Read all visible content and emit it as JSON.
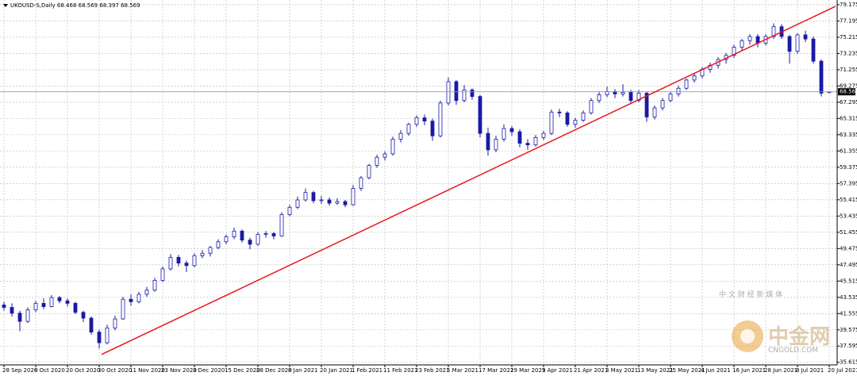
{
  "chart_data": {
    "type": "candlestick",
    "title": "UKOUSD-S,Daily  68.468 68.569 68.397 68.569",
    "up_color": "#ffffff",
    "down_color": "#1a1aa6",
    "outline_color": "#1a1aa6",
    "grid": true,
    "xlim": [
      -1,
      210
    ],
    "ylim": [
      35.3,
      79.75
    ],
    "yticks": [
      79.175,
      77.195,
      75.215,
      73.235,
      71.255,
      69.275,
      67.295,
      65.315,
      63.335,
      61.355,
      59.375,
      57.395,
      55.415,
      53.435,
      51.455,
      49.475,
      47.495,
      45.515,
      43.535,
      41.555,
      39.575,
      37.595,
      35.615
    ],
    "xticks": [
      {
        "value": 0,
        "label": "28 Sep 2020"
      },
      {
        "value": 8,
        "label": "8 Oct 2020"
      },
      {
        "value": 16,
        "label": "20 Oct 2020"
      },
      {
        "value": 24,
        "label": "30 Oct 2020"
      },
      {
        "value": 32,
        "label": "11 Nov 2020"
      },
      {
        "value": 40,
        "label": "23 Nov 2020"
      },
      {
        "value": 48,
        "label": "3 Dec 2020"
      },
      {
        "value": 56,
        "label": "15 Dec 2020"
      },
      {
        "value": 64,
        "label": "28 Dec 2020"
      },
      {
        "value": 72,
        "label": "8 Jan 2021"
      },
      {
        "value": 80,
        "label": "20 Jan 2021"
      },
      {
        "value": 88,
        "label": "1 Feb 2021"
      },
      {
        "value": 96,
        "label": "11 Feb 2021"
      },
      {
        "value": 104,
        "label": "23 Feb 2021"
      },
      {
        "value": 112,
        "label": "5 Mar 2021"
      },
      {
        "value": 120,
        "label": "17 Mar 2021"
      },
      {
        "value": 128,
        "label": "29 Mar 2021"
      },
      {
        "value": 136,
        "label": "9 Apr 2021"
      },
      {
        "value": 144,
        "label": "21 Apr 2021"
      },
      {
        "value": 152,
        "label": "3 May 2021"
      },
      {
        "value": 160,
        "label": "13 May 2021"
      },
      {
        "value": 168,
        "label": "25 May 2021"
      },
      {
        "value": 176,
        "label": "4 Jun 2021"
      },
      {
        "value": 184,
        "label": "16 Jun 2021"
      },
      {
        "value": 192,
        "label": "28 Jun 2021"
      },
      {
        "value": 200,
        "label": "8 Jul 2021"
      },
      {
        "value": 208,
        "label": "20 Jul 2021"
      }
    ],
    "x": [
      0,
      2,
      4,
      6,
      8,
      10,
      12,
      14,
      16,
      18,
      20,
      22,
      24,
      26,
      28,
      30,
      32,
      34,
      36,
      38,
      40,
      42,
      44,
      46,
      48,
      50,
      52,
      54,
      56,
      58,
      60,
      62,
      64,
      66,
      68,
      70,
      72,
      74,
      76,
      78,
      80,
      82,
      84,
      86,
      88,
      90,
      92,
      94,
      96,
      98,
      100,
      102,
      104,
      106,
      108,
      110,
      112,
      114,
      116,
      118,
      120,
      122,
      124,
      126,
      128,
      130,
      132,
      134,
      136,
      138,
      140,
      142,
      144,
      146,
      148,
      150,
      152,
      154,
      156,
      158,
      160,
      162,
      164,
      166,
      168,
      170,
      172,
      174,
      176,
      178,
      180,
      182,
      184,
      186,
      188,
      190,
      192,
      194,
      196,
      198,
      200,
      202,
      204,
      206,
      208
    ],
    "values": [
      [
        42.6,
        43.0,
        41.9,
        42.3
      ],
      [
        42.3,
        42.8,
        41.2,
        41.6
      ],
      [
        41.6,
        41.9,
        39.4,
        40.6
      ],
      [
        40.6,
        42.3,
        40.4,
        42.0
      ],
      [
        42.0,
        43.1,
        41.7,
        42.8
      ],
      [
        42.8,
        43.4,
        42.1,
        42.4
      ],
      [
        42.4,
        43.8,
        42.3,
        43.5
      ],
      [
        43.5,
        43.7,
        42.8,
        43.1
      ],
      [
        43.1,
        43.4,
        42.4,
        42.8
      ],
      [
        42.8,
        43.0,
        41.5,
        41.7
      ],
      [
        41.7,
        41.9,
        40.5,
        41.0
      ],
      [
        41.0,
        41.2,
        39.0,
        39.3
      ],
      [
        39.3,
        39.6,
        37.3,
        38.0
      ],
      [
        38.0,
        40.2,
        37.8,
        39.8
      ],
      [
        39.8,
        41.3,
        39.5,
        40.9
      ],
      [
        40.9,
        43.6,
        40.8,
        43.3
      ],
      [
        43.3,
        43.9,
        42.5,
        43.0
      ],
      [
        43.0,
        44.2,
        42.8,
        43.9
      ],
      [
        43.9,
        44.8,
        43.6,
        44.4
      ],
      [
        44.4,
        45.9,
        44.2,
        45.6
      ],
      [
        45.6,
        47.3,
        45.4,
        47.0
      ],
      [
        47.0,
        48.8,
        46.8,
        48.4
      ],
      [
        48.4,
        48.7,
        47.3,
        47.7
      ],
      [
        47.7,
        48.0,
        46.6,
        47.4
      ],
      [
        47.4,
        48.9,
        47.2,
        48.6
      ],
      [
        48.6,
        49.3,
        48.3,
        48.9
      ],
      [
        48.9,
        49.8,
        48.5,
        49.6
      ],
      [
        49.6,
        50.6,
        49.4,
        50.3
      ],
      [
        50.3,
        51.2,
        50.0,
        50.9
      ],
      [
        50.9,
        52.0,
        50.6,
        51.6
      ],
      [
        51.6,
        51.8,
        50.2,
        50.5
      ],
      [
        50.5,
        50.8,
        49.4,
        50.0
      ],
      [
        50.0,
        51.5,
        49.8,
        51.2
      ],
      [
        51.2,
        51.6,
        50.8,
        51.3
      ],
      [
        51.3,
        51.5,
        50.6,
        51.0
      ],
      [
        51.0,
        53.9,
        50.9,
        53.6
      ],
      [
        53.6,
        54.8,
        53.4,
        54.5
      ],
      [
        54.5,
        55.8,
        54.3,
        55.4
      ],
      [
        55.4,
        56.8,
        55.2,
        56.3
      ],
      [
        56.3,
        56.5,
        55.0,
        55.3
      ],
      [
        55.3,
        55.9,
        54.9,
        55.4
      ],
      [
        55.4,
        55.7,
        54.7,
        55.0
      ],
      [
        55.0,
        55.6,
        54.8,
        55.2
      ],
      [
        55.2,
        55.4,
        54.5,
        54.8
      ],
      [
        54.8,
        57.2,
        54.7,
        56.8
      ],
      [
        56.8,
        58.3,
        56.5,
        58.1
      ],
      [
        58.1,
        59.8,
        57.9,
        59.6
      ],
      [
        59.6,
        60.9,
        59.3,
        60.6
      ],
      [
        60.6,
        61.3,
        60.2,
        61.0
      ],
      [
        61.0,
        63.1,
        60.8,
        62.8
      ],
      [
        62.8,
        63.9,
        62.4,
        63.5
      ],
      [
        63.5,
        64.8,
        63.2,
        64.6
      ],
      [
        64.6,
        65.7,
        64.3,
        65.4
      ],
      [
        65.4,
        65.8,
        64.5,
        65.0
      ],
      [
        65.0,
        65.3,
        62.6,
        63.2
      ],
      [
        63.2,
        67.5,
        63.0,
        67.2
      ],
      [
        67.2,
        70.3,
        66.9,
        69.8
      ],
      [
        69.8,
        70.0,
        67.0,
        67.5
      ],
      [
        67.5,
        69.4,
        67.3,
        68.8
      ],
      [
        68.8,
        69.0,
        67.6,
        68.0
      ],
      [
        68.0,
        68.2,
        63.0,
        63.5
      ],
      [
        63.5,
        64.2,
        60.8,
        61.5
      ],
      [
        61.5,
        63.2,
        61.2,
        62.8
      ],
      [
        62.8,
        64.6,
        62.5,
        64.1
      ],
      [
        64.1,
        64.4,
        63.2,
        63.7
      ],
      [
        63.7,
        64.0,
        61.8,
        62.3
      ],
      [
        62.3,
        62.8,
        61.5,
        62.1
      ],
      [
        62.1,
        63.3,
        61.9,
        63.0
      ],
      [
        63.0,
        63.8,
        62.7,
        63.5
      ],
      [
        63.5,
        66.4,
        63.3,
        66.1
      ],
      [
        66.1,
        66.5,
        65.5,
        66.0
      ],
      [
        66.0,
        66.2,
        64.3,
        64.6
      ],
      [
        64.6,
        65.4,
        64.2,
        65.1
      ],
      [
        65.1,
        66.3,
        64.9,
        66.0
      ],
      [
        66.0,
        67.8,
        65.8,
        67.5
      ],
      [
        67.5,
        68.6,
        67.2,
        68.2
      ],
      [
        68.2,
        69.2,
        67.9,
        68.6
      ],
      [
        68.6,
        68.9,
        67.8,
        68.3
      ],
      [
        68.3,
        69.5,
        68.0,
        68.5
      ],
      [
        68.5,
        68.8,
        67.2,
        67.5
      ],
      [
        67.5,
        68.8,
        67.3,
        68.4
      ],
      [
        68.4,
        68.6,
        64.9,
        65.5
      ],
      [
        65.5,
        66.9,
        65.2,
        66.6
      ],
      [
        66.6,
        67.8,
        66.3,
        67.5
      ],
      [
        67.5,
        68.6,
        67.3,
        68.3
      ],
      [
        68.3,
        69.3,
        68.0,
        69.0
      ],
      [
        69.0,
        70.2,
        68.8,
        70.0
      ],
      [
        70.0,
        70.8,
        69.7,
        70.5
      ],
      [
        70.5,
        71.6,
        70.2,
        71.3
      ],
      [
        71.3,
        72.1,
        70.9,
        71.8
      ],
      [
        71.8,
        72.8,
        71.4,
        72.5
      ],
      [
        72.5,
        73.3,
        72.0,
        73.0
      ],
      [
        73.0,
        74.3,
        72.7,
        74.0
      ],
      [
        74.0,
        75.0,
        73.6,
        74.8
      ],
      [
        74.8,
        75.6,
        74.3,
        75.3
      ],
      [
        75.3,
        75.6,
        74.0,
        74.5
      ],
      [
        74.5,
        75.6,
        74.2,
        75.3
      ],
      [
        75.3,
        76.9,
        75.0,
        76.5
      ],
      [
        76.5,
        76.8,
        75.0,
        75.3
      ],
      [
        75.3,
        75.5,
        72.0,
        73.5
      ],
      [
        73.5,
        75.7,
        73.2,
        75.5
      ],
      [
        75.5,
        76.0,
        74.6,
        75.0
      ],
      [
        75.0,
        75.3,
        72.0,
        72.3
      ],
      [
        72.3,
        72.5,
        68.0,
        68.4
      ],
      [
        68.468,
        68.569,
        68.397,
        68.569
      ]
    ],
    "trendline": {
      "x": [
        24.6,
        209.6
      ],
      "y": [
        36.57,
        78.98
      ],
      "color": "#e8141c"
    },
    "current_price": 68.569,
    "current_price_color": "#9a9a9a"
  },
  "watermark": {
    "logo": "中金网",
    "site": "CNGOLD.COM",
    "slogan": "中 文 财 经 新 媒 体"
  }
}
